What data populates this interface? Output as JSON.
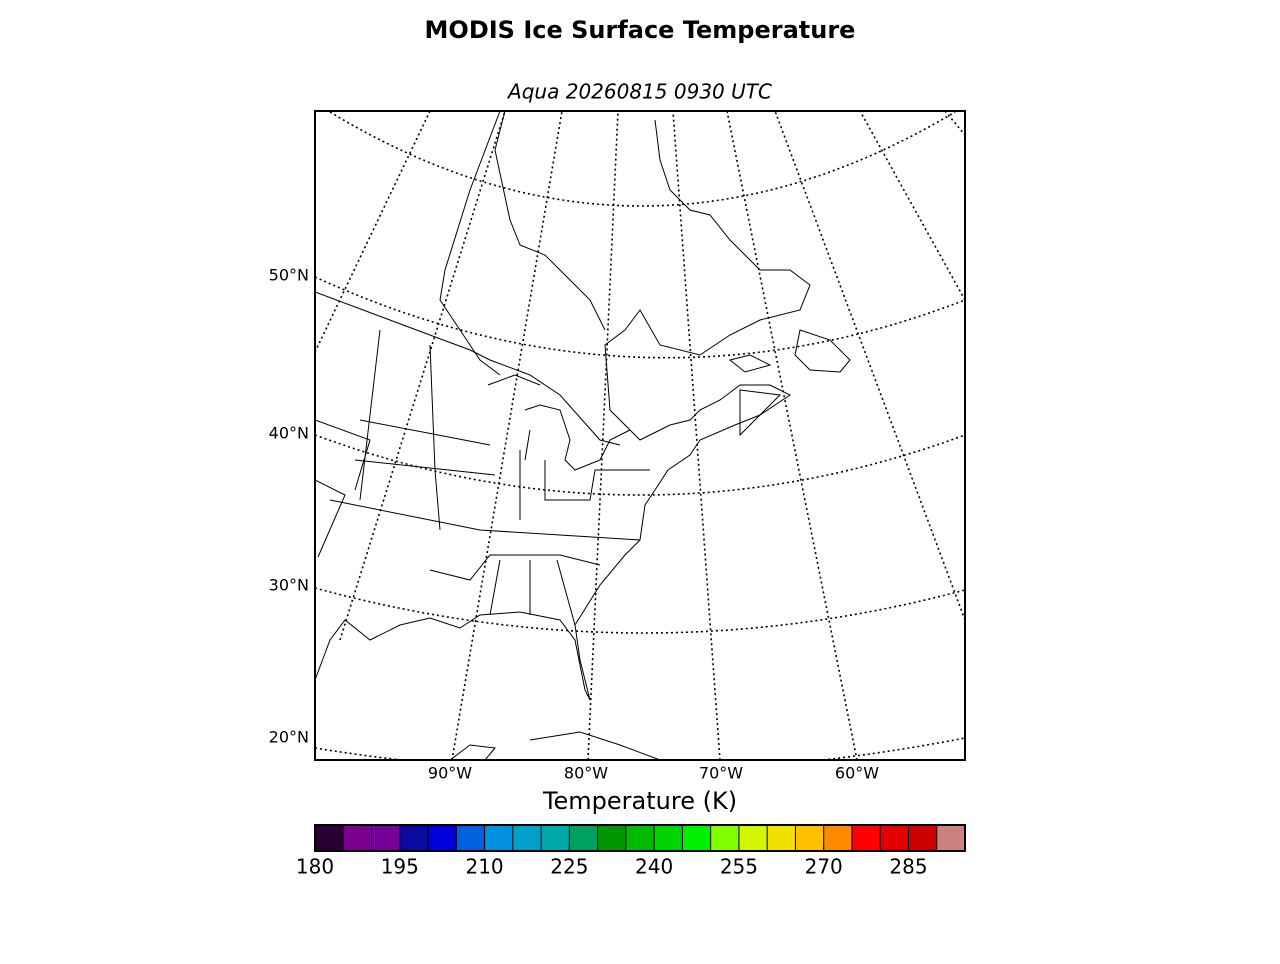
{
  "header": {
    "title": "MODIS Ice Surface Temperature",
    "subtitle": "Aqua 20260815 0930 UTC"
  },
  "map": {
    "lat_labels": [
      "50°N",
      "40°N",
      "30°N",
      "20°N"
    ],
    "lon_labels": [
      "90°W",
      "80°W",
      "70°W",
      "60°W"
    ]
  },
  "colorbar": {
    "label": "Temperature (K)",
    "lim": [
      180,
      295
    ],
    "ticks": [
      180,
      195,
      210,
      225,
      240,
      255,
      270,
      285
    ],
    "colors": [
      "#2a0032",
      "#7a0090",
      "#78009a",
      "#0a0aa0",
      "#0000dc",
      "#0060e0",
      "#0090e0",
      "#00a0c8",
      "#00a8a8",
      "#00a060",
      "#009600",
      "#00bb00",
      "#00d400",
      "#00f000",
      "#80ff00",
      "#d4f500",
      "#f2e000",
      "#ffc000",
      "#ff8a00",
      "#ff0000",
      "#e40000",
      "#cc0000",
      "#cc8080"
    ]
  }
}
